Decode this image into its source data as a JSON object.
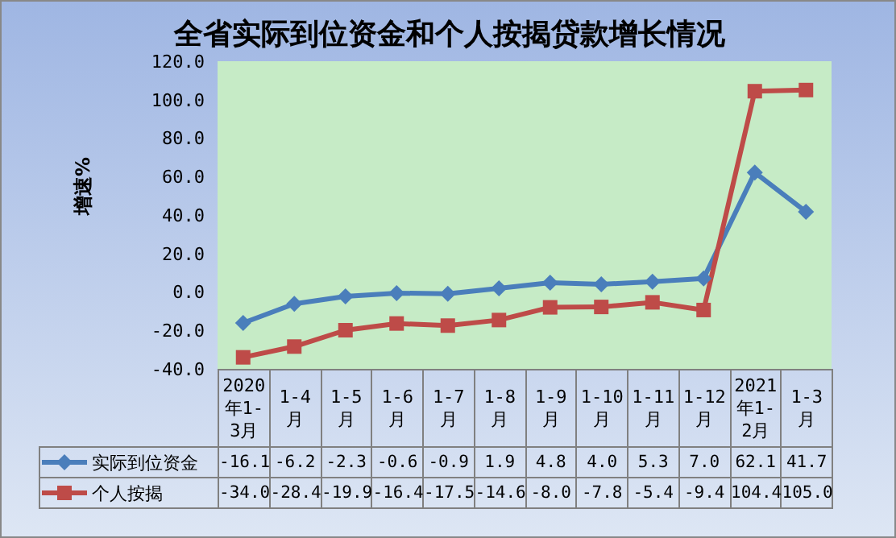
{
  "chart_data": {
    "type": "line",
    "title": "全省实际到位资金和个人按揭贷款增长情况",
    "ylabel": "增速%",
    "categories": [
      "2020年1-3月",
      "1-4月",
      "1-5月",
      "1-6月",
      "1-7月",
      "1-8月",
      "1-9月",
      "1-10月",
      "1-11月",
      "1-12月",
      "2021年1-2月",
      "1-3月"
    ],
    "series": [
      {
        "name": "实际到位资金",
        "color": "#4a7ebb",
        "marker": "diamond",
        "values": [
          -16.1,
          -6.2,
          -2.3,
          -0.6,
          -0.9,
          1.9,
          4.8,
          4.0,
          5.3,
          7.0,
          62.1,
          41.7
        ],
        "value_labels": [
          "-16.1",
          "-6.2",
          "-2.3",
          "-0.6",
          "-0.9",
          "1.9",
          "4.8",
          "4.0",
          "5.3",
          "7.0",
          "62.1",
          "41.7"
        ]
      },
      {
        "name": "个人按揭",
        "color": "#be4b48",
        "marker": "square",
        "values": [
          -34.0,
          -28.4,
          -19.9,
          -16.4,
          -17.5,
          -14.6,
          -8.0,
          -7.8,
          -5.4,
          -9.4,
          104.4,
          105.0
        ],
        "value_labels": [
          "-34.0",
          "-28.4",
          "-19.9",
          "-16.4",
          "-17.5",
          "-14.6",
          "-8.0",
          "-7.8",
          "-5.4",
          "-9.4",
          "104.4",
          "105.0"
        ]
      }
    ],
    "ylim": [
      -40,
      120
    ],
    "yticks": [
      {
        "value": -40,
        "label": "-40.0"
      },
      {
        "value": -20,
        "label": "-20.0"
      },
      {
        "value": 0,
        "label": "0.0"
      },
      {
        "value": 20,
        "label": "20.0"
      },
      {
        "value": 40,
        "label": "40.0"
      },
      {
        "value": 60,
        "label": "60.0"
      },
      {
        "value": 80,
        "label": "80.0"
      },
      {
        "value": 100,
        "label": "100.0"
      },
      {
        "value": 120,
        "label": "120.0"
      }
    ],
    "grid": false,
    "legend": "bottom",
    "line_style": "solid"
  }
}
